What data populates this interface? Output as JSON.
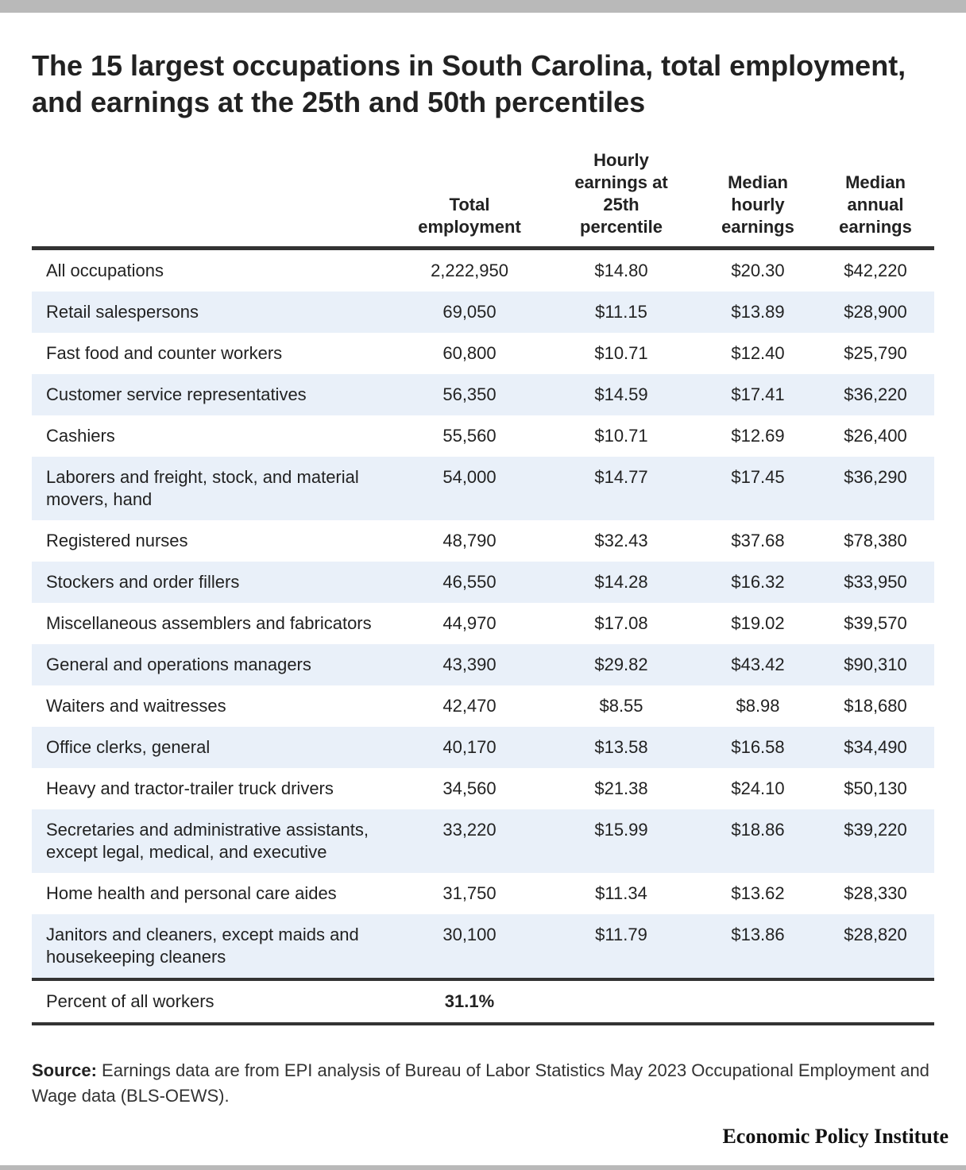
{
  "title": "The 15 largest occupations in South Carolina, total employment, and earnings at the 25th and 50th percentiles",
  "chart_data": {
    "type": "table",
    "title": "The 15 largest occupations in South Carolina, total employment, and earnings at the 25th and 50th percentiles",
    "columns": [
      "",
      "Total\nemployment",
      "Hourly\nearnings at\n25th\npercentile",
      "Median\nhourly\nearnings",
      "Median\nannual\nearnings"
    ],
    "rows": [
      [
        "All occupations",
        "2,222,950",
        "$14.80",
        "$20.30",
        "$42,220"
      ],
      [
        "Retail salespersons",
        "69,050",
        "$11.15",
        "$13.89",
        "$28,900"
      ],
      [
        "Fast food and counter workers",
        "60,800",
        "$10.71",
        "$12.40",
        "$25,790"
      ],
      [
        "Customer service representatives",
        "56,350",
        "$14.59",
        "$17.41",
        "$36,220"
      ],
      [
        "Cashiers",
        "55,560",
        "$10.71",
        "$12.69",
        "$26,400"
      ],
      [
        "Laborers and freight, stock, and material movers, hand",
        "54,000",
        "$14.77",
        "$17.45",
        "$36,290"
      ],
      [
        "Registered nurses",
        "48,790",
        "$32.43",
        "$37.68",
        "$78,380"
      ],
      [
        "Stockers and order fillers",
        "46,550",
        "$14.28",
        "$16.32",
        "$33,950"
      ],
      [
        "Miscellaneous assemblers and fabricators",
        "44,970",
        "$17.08",
        "$19.02",
        "$39,570"
      ],
      [
        "General and operations managers",
        "43,390",
        "$29.82",
        "$43.42",
        "$90,310"
      ],
      [
        "Waiters and waitresses",
        "42,470",
        "$8.55",
        "$8.98",
        "$18,680"
      ],
      [
        "Office clerks, general",
        "40,170",
        "$13.58",
        "$16.58",
        "$34,490"
      ],
      [
        "Heavy and tractor-trailer truck drivers",
        "34,560",
        "$21.38",
        "$24.10",
        "$50,130"
      ],
      [
        "Secretaries and administrative assistants, except legal, medical, and executive",
        "33,220",
        "$15.99",
        "$18.86",
        "$39,220"
      ],
      [
        "Home health and personal care aides",
        "31,750",
        "$11.34",
        "$13.62",
        "$28,330"
      ],
      [
        "Janitors and cleaners, except maids and housekeeping cleaners",
        "30,100",
        "$11.79",
        "$13.86",
        "$28,820"
      ]
    ],
    "footer_row": [
      "Percent of all workers",
      "31.1%",
      "",
      "",
      ""
    ]
  },
  "source": {
    "label": "Source:",
    "text": " Earnings data are from EPI analysis of Bureau of Labor Statistics May 2023 Occupational Employment and Wage data (BLS-OEWS)."
  },
  "brand": "Economic Policy Institute",
  "colors": {
    "stripe": "#e9f0f9",
    "rule": "#333333",
    "frame": "#b9b9b9"
  }
}
